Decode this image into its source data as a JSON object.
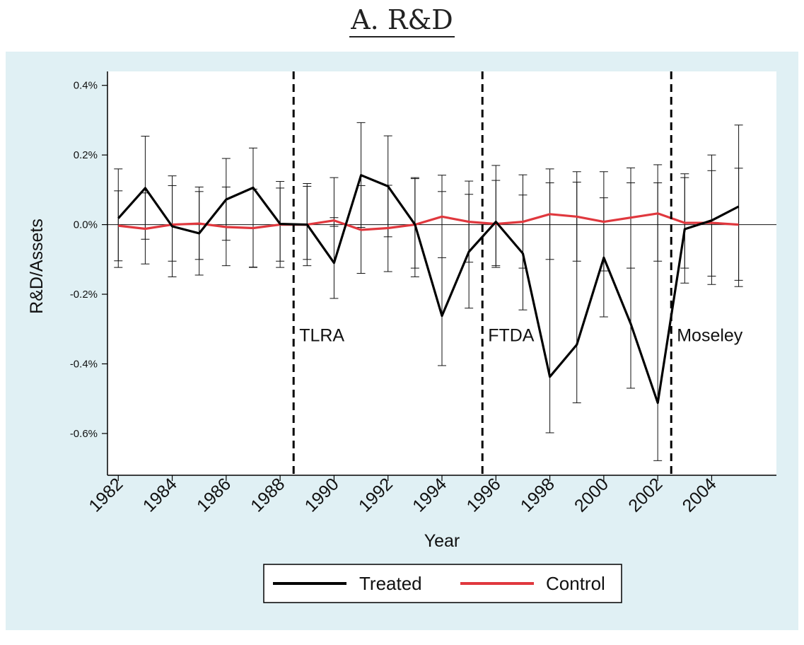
{
  "chart_data": {
    "type": "line",
    "title": "A. R&D",
    "xlabel": "Year",
    "ylabel": "R&D/Assets",
    "x": [
      1982,
      1983,
      1984,
      1985,
      1986,
      1987,
      1988,
      1989,
      1990,
      1991,
      1992,
      1993,
      1994,
      1995,
      1996,
      1997,
      1998,
      1999,
      2000,
      2001,
      2002,
      2003,
      2004,
      2005
    ],
    "xlim": [
      1981.6,
      2006.4
    ],
    "ylim": [
      -0.72,
      0.44
    ],
    "xticks": [
      1982,
      1984,
      1986,
      1988,
      1990,
      1992,
      1994,
      1996,
      1998,
      2000,
      2002,
      2004
    ],
    "yticks": [
      0.4,
      0.2,
      0.0,
      -0.2,
      -0.4,
      -0.6
    ],
    "yticklabels": [
      "0.4%",
      "0.2%",
      "0.0%",
      "-0.2%",
      "-0.4%",
      "-0.6%"
    ],
    "grid": false,
    "legend_position": "bottom",
    "series": [
      {
        "name": "Treated",
        "color": "#000000",
        "values": [
          0.018,
          0.105,
          -0.005,
          -0.025,
          0.072,
          0.106,
          0.002,
          0.0,
          -0.11,
          0.142,
          0.11,
          0.0,
          -0.262,
          -0.078,
          0.008,
          -0.083,
          -0.437,
          -0.345,
          -0.095,
          -0.285,
          -0.512,
          -0.013,
          0.012,
          0.052
        ],
        "ci_lower": [
          -0.123,
          -0.042,
          -0.15,
          -0.145,
          -0.118,
          -0.123,
          -0.123,
          -0.1,
          -0.212,
          -0.008,
          -0.035,
          -0.15,
          -0.405,
          -0.24,
          -0.123,
          -0.245,
          -0.598,
          -0.512,
          -0.265,
          -0.47,
          -0.678,
          -0.168,
          -0.148,
          -0.178
        ],
        "ci_upper": [
          0.16,
          0.254,
          0.14,
          0.108,
          0.19,
          0.22,
          0.124,
          0.118,
          0.135,
          0.293,
          0.255,
          0.135,
          0.142,
          0.125,
          0.17,
          0.143,
          0.16,
          0.152,
          0.152,
          0.163,
          0.172,
          0.146,
          0.2,
          0.286
        ]
      },
      {
        "name": "Control",
        "color": "#e0383e",
        "values": [
          -0.003,
          -0.012,
          0.0,
          0.003,
          -0.007,
          -0.01,
          0.0,
          0.0,
          0.012,
          -0.015,
          -0.01,
          0.0,
          0.023,
          0.008,
          0.002,
          0.008,
          0.03,
          0.023,
          0.008,
          0.02,
          0.032,
          0.005,
          0.005,
          0.0
        ],
        "ci_lower": [
          -0.104,
          -0.113,
          -0.105,
          -0.1,
          -0.045,
          -0.122,
          -0.105,
          -0.118,
          -0.005,
          -0.14,
          -0.135,
          -0.125,
          -0.095,
          -0.108,
          -0.118,
          -0.125,
          -0.1,
          -0.105,
          -0.133,
          -0.125,
          -0.105,
          -0.125,
          -0.172,
          -0.16
        ],
        "ci_upper": [
          0.097,
          0.091,
          0.112,
          0.095,
          0.108,
          0.102,
          0.105,
          0.11,
          0.02,
          0.112,
          0.113,
          0.132,
          0.095,
          0.087,
          0.127,
          0.085,
          0.12,
          0.122,
          0.077,
          0.12,
          0.12,
          0.135,
          0.155,
          0.162
        ]
      }
    ],
    "annotations": [
      {
        "text": "TLRA",
        "x": 1988.5
      },
      {
        "text": "FTDA",
        "x": 1995.5
      },
      {
        "text": "Moseley",
        "x": 2002.5
      }
    ]
  },
  "colors": {
    "panel_background": "#e0f0f4",
    "plot_background": "#ffffff"
  }
}
